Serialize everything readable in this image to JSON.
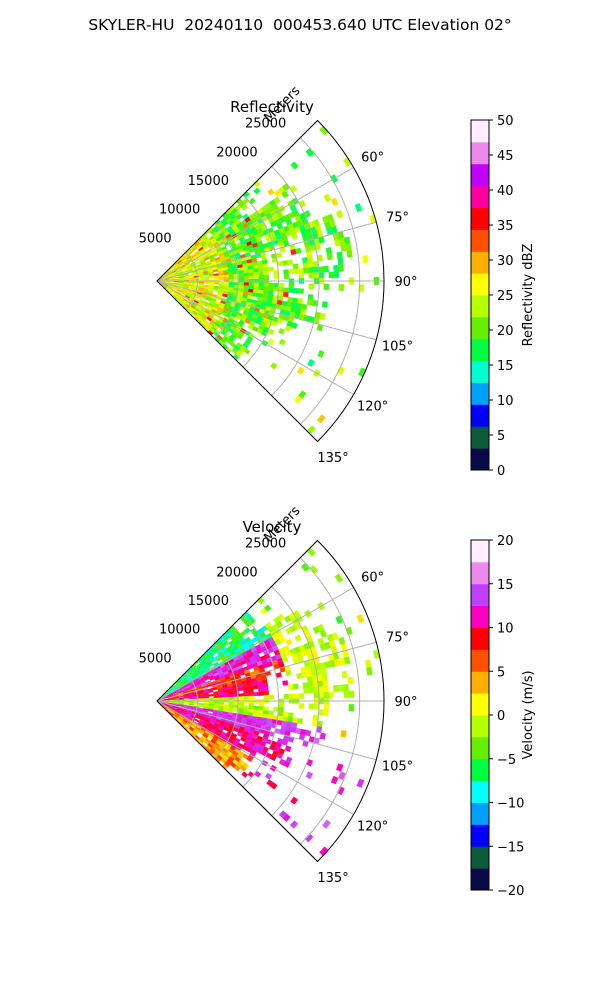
{
  "figure": {
    "title": "SKYLER-HU  20240110  000453.640 UTC Elevation 02°"
  },
  "chart_data": [
    {
      "type": "heatmap",
      "subtype": "polar-sector-radar",
      "title": "Reflectivity",
      "radial_axis_label": "Meters",
      "radial_ticks": [
        5000,
        10000,
        15000,
        20000,
        25000
      ],
      "radial_tick_labels": [
        "5000",
        "10000",
        "15000",
        "20000",
        "25000"
      ],
      "azimuth_range_deg": [
        45,
        135
      ],
      "azimuth_ticks": [
        60,
        75,
        90,
        105,
        120,
        135
      ],
      "azimuth_tick_labels": [
        "60°",
        "75°",
        "90°",
        "105°",
        "120°",
        "135°"
      ],
      "colorbar": {
        "label": "Reflectivity dBZ",
        "range": [
          0,
          50
        ],
        "ticks": [
          0,
          5,
          10,
          15,
          20,
          25,
          30,
          35,
          40,
          45,
          50
        ],
        "tick_labels": [
          "0",
          "5",
          "10",
          "15",
          "20",
          "25",
          "30",
          "35",
          "40",
          "45",
          "50"
        ],
        "palette": [
          "#0a0a4a",
          "#0b5b3b",
          "#0000ff",
          "#00a0ff",
          "#00ffd0",
          "#00ff40",
          "#66ee00",
          "#b6ff00",
          "#ffff00",
          "#ffb000",
          "#ff5000",
          "#ff0000",
          "#ff00a0",
          "#c000ff",
          "#ee88ee",
          "#ffeeff"
        ]
      },
      "echo_character": "mostly 17-28 dBZ with scattered 30-38 dBZ cells near the radar"
    },
    {
      "type": "heatmap",
      "subtype": "polar-sector-radar",
      "title": "Velocity",
      "radial_axis_label": "Meters",
      "radial_ticks": [
        5000,
        10000,
        15000,
        20000,
        25000
      ],
      "radial_tick_labels": [
        "5000",
        "10000",
        "15000",
        "20000",
        "25000"
      ],
      "azimuth_range_deg": [
        45,
        135
      ],
      "azimuth_ticks": [
        60,
        75,
        90,
        105,
        120,
        135
      ],
      "azimuth_tick_labels": [
        "60°",
        "75°",
        "90°",
        "105°",
        "120°",
        "135°"
      ],
      "colorbar": {
        "label": "Velocity (m/s)",
        "range": [
          -20,
          20
        ],
        "ticks": [
          -20,
          -15,
          -10,
          -5,
          0,
          5,
          10,
          15,
          20
        ],
        "tick_labels": [
          "−20",
          "−15",
          "−10",
          "−5",
          "0",
          "5",
          "10",
          "15",
          "20"
        ],
        "palette": [
          "#0a0a4a",
          "#0b5b3b",
          "#0000ff",
          "#00a0ff",
          "#00ffff",
          "#00ff40",
          "#66ee00",
          "#b6ff00",
          "#ffff00",
          "#ffb000",
          "#ff5000",
          "#ff0000",
          "#ff00c0",
          "#c040ff",
          "#ee88ee",
          "#ffeeff"
        ]
      },
      "echo_character": "-10 to +15 m/s; inbound (green/cyan) north of 75°, outbound (red/magenta) near 85° and 110-125°"
    }
  ]
}
